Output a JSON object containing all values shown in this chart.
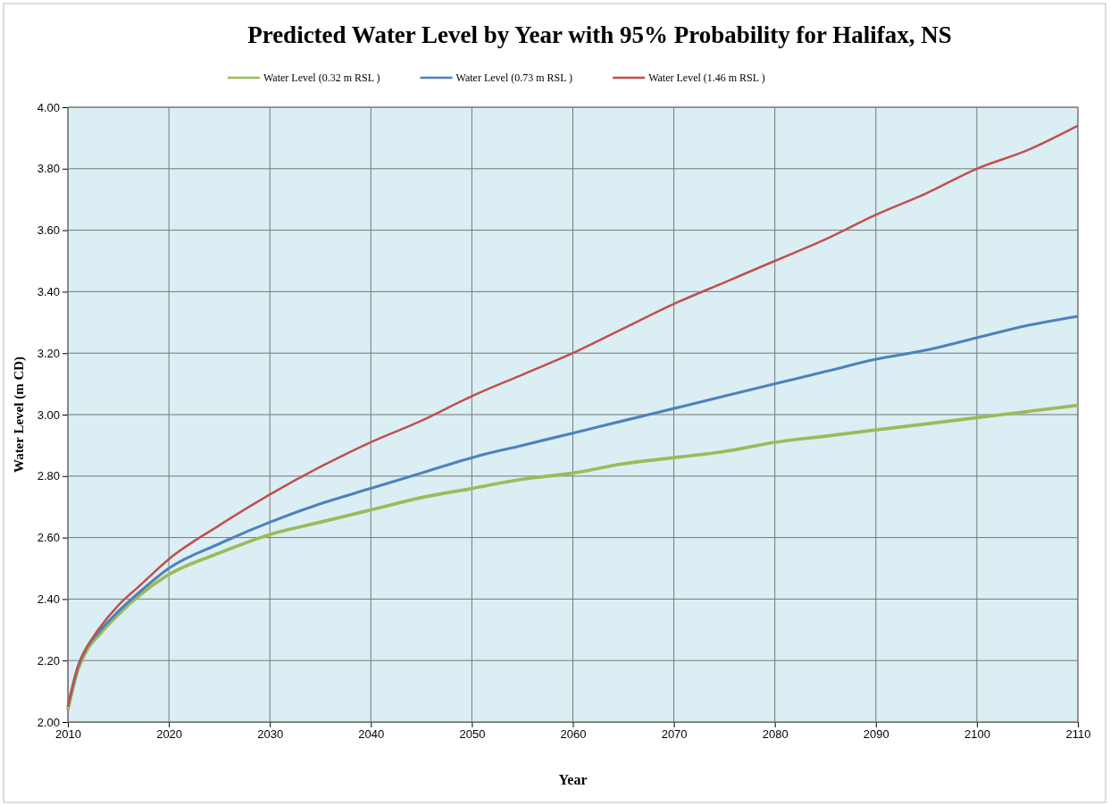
{
  "chart_data": {
    "type": "line",
    "title": "Predicted Water Level by Year with 95% Probability for Halifax, NS",
    "xlabel": "Year",
    "ylabel": "Water Level (m CD)",
    "x": [
      2010,
      2011,
      2012,
      2013,
      2015,
      2017,
      2020,
      2025,
      2030,
      2035,
      2040,
      2045,
      2050,
      2055,
      2060,
      2065,
      2070,
      2075,
      2080,
      2085,
      2090,
      2095,
      2100,
      2105,
      2110
    ],
    "series": [
      {
        "name": "Water Level (0.32 m RSL )",
        "color": "#9bbb59",
        "values": [
          2.04,
          2.17,
          2.24,
          2.28,
          2.35,
          2.41,
          2.48,
          2.55,
          2.61,
          2.65,
          2.69,
          2.73,
          2.76,
          2.79,
          2.81,
          2.84,
          2.86,
          2.88,
          2.91,
          2.93,
          2.95,
          2.97,
          2.99,
          3.01,
          3.03
        ]
      },
      {
        "name": "Water Level (0.73 m RSL )",
        "color": "#4f81bd",
        "values": [
          2.05,
          2.18,
          2.25,
          2.29,
          2.36,
          2.42,
          2.5,
          2.58,
          2.65,
          2.71,
          2.76,
          2.81,
          2.86,
          2.9,
          2.94,
          2.98,
          3.02,
          3.06,
          3.1,
          3.14,
          3.18,
          3.21,
          3.25,
          3.29,
          3.32
        ]
      },
      {
        "name": "Water Level (1.46 m RSL )",
        "color": "#c0504d",
        "values": [
          2.05,
          2.18,
          2.25,
          2.3,
          2.38,
          2.44,
          2.53,
          2.64,
          2.74,
          2.83,
          2.91,
          2.98,
          3.06,
          3.13,
          3.2,
          3.28,
          3.36,
          3.43,
          3.5,
          3.57,
          3.65,
          3.72,
          3.8,
          3.86,
          3.94
        ]
      }
    ],
    "xlim": [
      2010,
      2110
    ],
    "xticks": [
      2010,
      2020,
      2030,
      2040,
      2050,
      2060,
      2070,
      2080,
      2090,
      2100,
      2110
    ],
    "ylim": [
      2,
      4
    ],
    "yticks": [
      {
        "value": 2,
        "label": "2.00"
      },
      {
        "value": 2.2,
        "label": "2.20"
      },
      {
        "value": 2.4,
        "label": "2.40"
      },
      {
        "value": 2.6,
        "label": "2.60"
      },
      {
        "value": 2.8,
        "label": "2.80"
      },
      {
        "value": 3,
        "label": "3.00"
      },
      {
        "value": 3.2,
        "label": "3.20"
      },
      {
        "value": 3.4,
        "label": "3.40"
      },
      {
        "value": 3.6,
        "label": "3.60"
      },
      {
        "value": 3.8,
        "label": "3.80"
      },
      {
        "value": 4,
        "label": "4.00"
      }
    ],
    "grid": true,
    "legend": "top",
    "marker": "none",
    "line_style": "solid"
  }
}
